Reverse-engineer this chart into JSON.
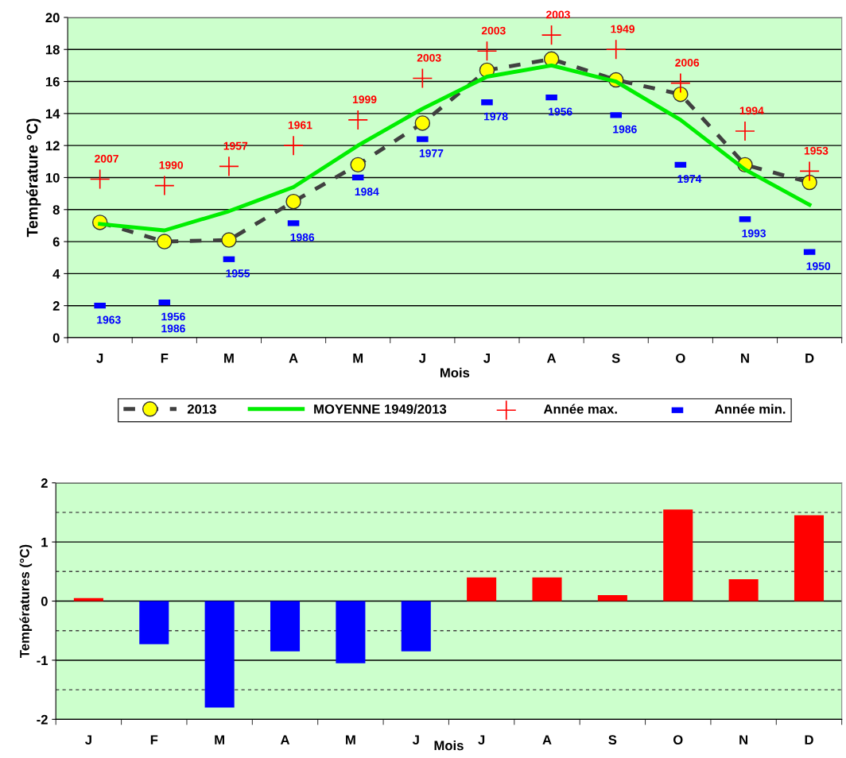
{
  "chart_data": [
    {
      "type": "line",
      "xlabel": "Mois",
      "ylabel": "Température °C)",
      "categories": [
        "J",
        "F",
        "M",
        "A",
        "M",
        "J",
        "J",
        "A",
        "S",
        "O",
        "N",
        "D"
      ],
      "ylim": [
        0,
        20
      ],
      "yticks": [
        0,
        2,
        4,
        6,
        8,
        10,
        12,
        14,
        16,
        18,
        20
      ],
      "grid": "y",
      "legend": "bottom",
      "series": [
        {
          "name": "2013",
          "type": "line",
          "color": "#404040",
          "marker": "circle",
          "line_style": "dashed",
          "values": [
            7.2,
            6.0,
            6.1,
            8.5,
            10.8,
            13.4,
            16.7,
            17.4,
            16.1,
            15.2,
            10.8,
            9.7
          ]
        },
        {
          "name": "MOYENNE 1949/2013",
          "type": "line",
          "color": "#00ee00",
          "marker": "none",
          "line_style": "solid",
          "values": [
            7.1,
            6.7,
            7.9,
            9.4,
            12.0,
            14.3,
            16.3,
            17.0,
            16.0,
            13.6,
            10.5,
            8.3
          ]
        },
        {
          "name": "Année max.",
          "type": "scatter",
          "color": "#ff0000",
          "marker": "cross",
          "values": [
            9.9,
            9.5,
            10.7,
            12.0,
            13.6,
            16.2,
            17.9,
            18.9,
            18.0,
            15.9,
            12.9,
            10.4
          ]
        },
        {
          "name": "Année min.",
          "type": "scatter",
          "color": "#0000ff",
          "marker": "square",
          "values": [
            2.0,
            2.2,
            4.9,
            7.15,
            10.0,
            12.4,
            14.7,
            15.0,
            13.9,
            10.8,
            7.4,
            5.35
          ]
        }
      ],
      "annotations": [
        {
          "text": "2007",
          "x": "J",
          "y": 9.9
        },
        {
          "text": "1990",
          "x": "F",
          "y": 9.5
        },
        {
          "text": "1957",
          "x": "M",
          "y": 10.7
        },
        {
          "text": "1961",
          "x": "A",
          "y": 12.0
        },
        {
          "text": "1999",
          "y": 13.6
        },
        {
          "text": "2003",
          "y": 16.2
        },
        {
          "text": "2003",
          "y": 17.9
        },
        {
          "text": "2003",
          "y": 18.9
        },
        {
          "text": "1949",
          "x": "S",
          "y": 18.0
        },
        {
          "text": "2006",
          "x": "O",
          "y": 15.9
        },
        {
          "text": "1994",
          "x": "N",
          "y": 12.9
        },
        {
          "text": "1953",
          "x": "D",
          "y": 10.4
        },
        {
          "text": "1963",
          "x": "J",
          "y": 2.0
        },
        {
          "text": "1956\n1986",
          "x": "F",
          "y": 2.2
        },
        {
          "text": "1955",
          "x": "M",
          "y": 4.9
        },
        {
          "text": "1986",
          "x": "A",
          "y": 7.15
        },
        {
          "text": "1984",
          "y": 10.0
        },
        {
          "text": "1977",
          "y": 12.4
        },
        {
          "text": "1978",
          "y": 14.7
        },
        {
          "text": "1956",
          "y": 15.0
        },
        {
          "text": "1986",
          "x": "S",
          "y": 13.9
        },
        {
          "text": "1974",
          "x": "O",
          "y": 10.8
        },
        {
          "text": "1993",
          "x": "N",
          "y": 7.4
        },
        {
          "text": "1950",
          "x": "D",
          "y": 5.35
        }
      ]
    },
    {
      "type": "bar",
      "xlabel": "Mois",
      "ylabel": "Températures (°C)",
      "categories": [
        "J",
        "F",
        "M",
        "A",
        "M",
        "J",
        "J",
        "A",
        "S",
        "O",
        "N",
        "D"
      ],
      "ylim": [
        -2,
        2
      ],
      "yticks": [
        -2,
        -1,
        0,
        1,
        2
      ],
      "grid": "y",
      "values": [
        0.05,
        -0.73,
        -1.8,
        -0.85,
        -1.05,
        -0.85,
        0.4,
        0.4,
        0.1,
        1.55,
        0.37,
        1.45
      ],
      "colors": [
        "#ff0000",
        "#0000ff",
        "#0000ff",
        "#0000ff",
        "#0000ff",
        "#0000ff",
        "#ff0000",
        "#ff0000",
        "#ff0000",
        "#ff0000",
        "#ff0000",
        "#ff0000"
      ],
      "ref_lines": [
        {
          "axis": "y",
          "value": -1.5,
          "color": "#404040",
          "line_style": "dashed"
        },
        {
          "axis": "y",
          "value": -0.5,
          "color": "#404040",
          "line_style": "dashed"
        },
        {
          "axis": "y",
          "value": 0.5,
          "color": "#404040",
          "line_style": "dashed"
        },
        {
          "axis": "y",
          "value": 1.5,
          "color": "#404040",
          "line_style": "dashed"
        }
      ]
    }
  ]
}
